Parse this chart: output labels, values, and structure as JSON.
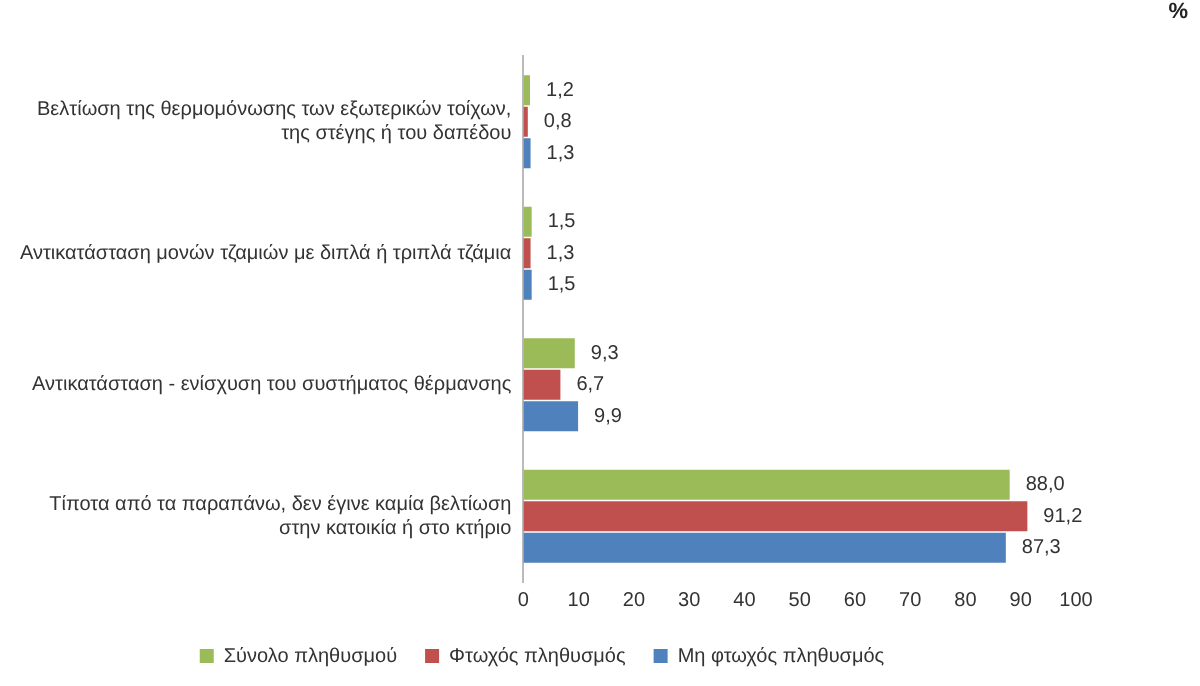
{
  "chart_data": {
    "type": "bar",
    "orientation": "horizontal",
    "categories": [
      "Βελτίωση της θερμομόνωσης των εξωτερικών τοίχων, της στέγης ή του δαπέδου",
      "Αντικατάσταση μονών τζαμιών με διπλά ή τριπλά τζάμια",
      "Αντικατάσταση - ενίσχυση του συστήματος θέρμανσης",
      "Τίποτα από τα παραπάνω, δεν έγινε καμία βελτίωση στην κατοικία ή στο κτήριο"
    ],
    "series": [
      {
        "name": "Σύνολο πληθυσμού",
        "color": "#9bbb59",
        "values": [
          1.2,
          1.5,
          9.3,
          88.0
        ],
        "value_labels": [
          "1,2",
          "1,5",
          "9,3",
          "88,0"
        ]
      },
      {
        "name": "Φτωχός πληθυσμός",
        "color": "#c0504d",
        "values": [
          0.8,
          1.3,
          6.7,
          91.2
        ],
        "value_labels": [
          "0,8",
          "1,3",
          "6,7",
          "91,2"
        ]
      },
      {
        "name": "Μη φτωχός πληθυσμός",
        "color": "#4f81bd",
        "values": [
          1.3,
          1.5,
          9.9,
          87.3
        ],
        "value_labels": [
          "1,3",
          "1,5",
          "9,9",
          "87,3"
        ]
      }
    ],
    "xlim": [
      0,
      100
    ],
    "xticks": [
      0,
      10,
      20,
      30,
      40,
      50,
      60,
      70,
      80,
      90,
      100
    ],
    "grid": false,
    "legend": "bottom",
    "annotations": [
      "%"
    ]
  }
}
